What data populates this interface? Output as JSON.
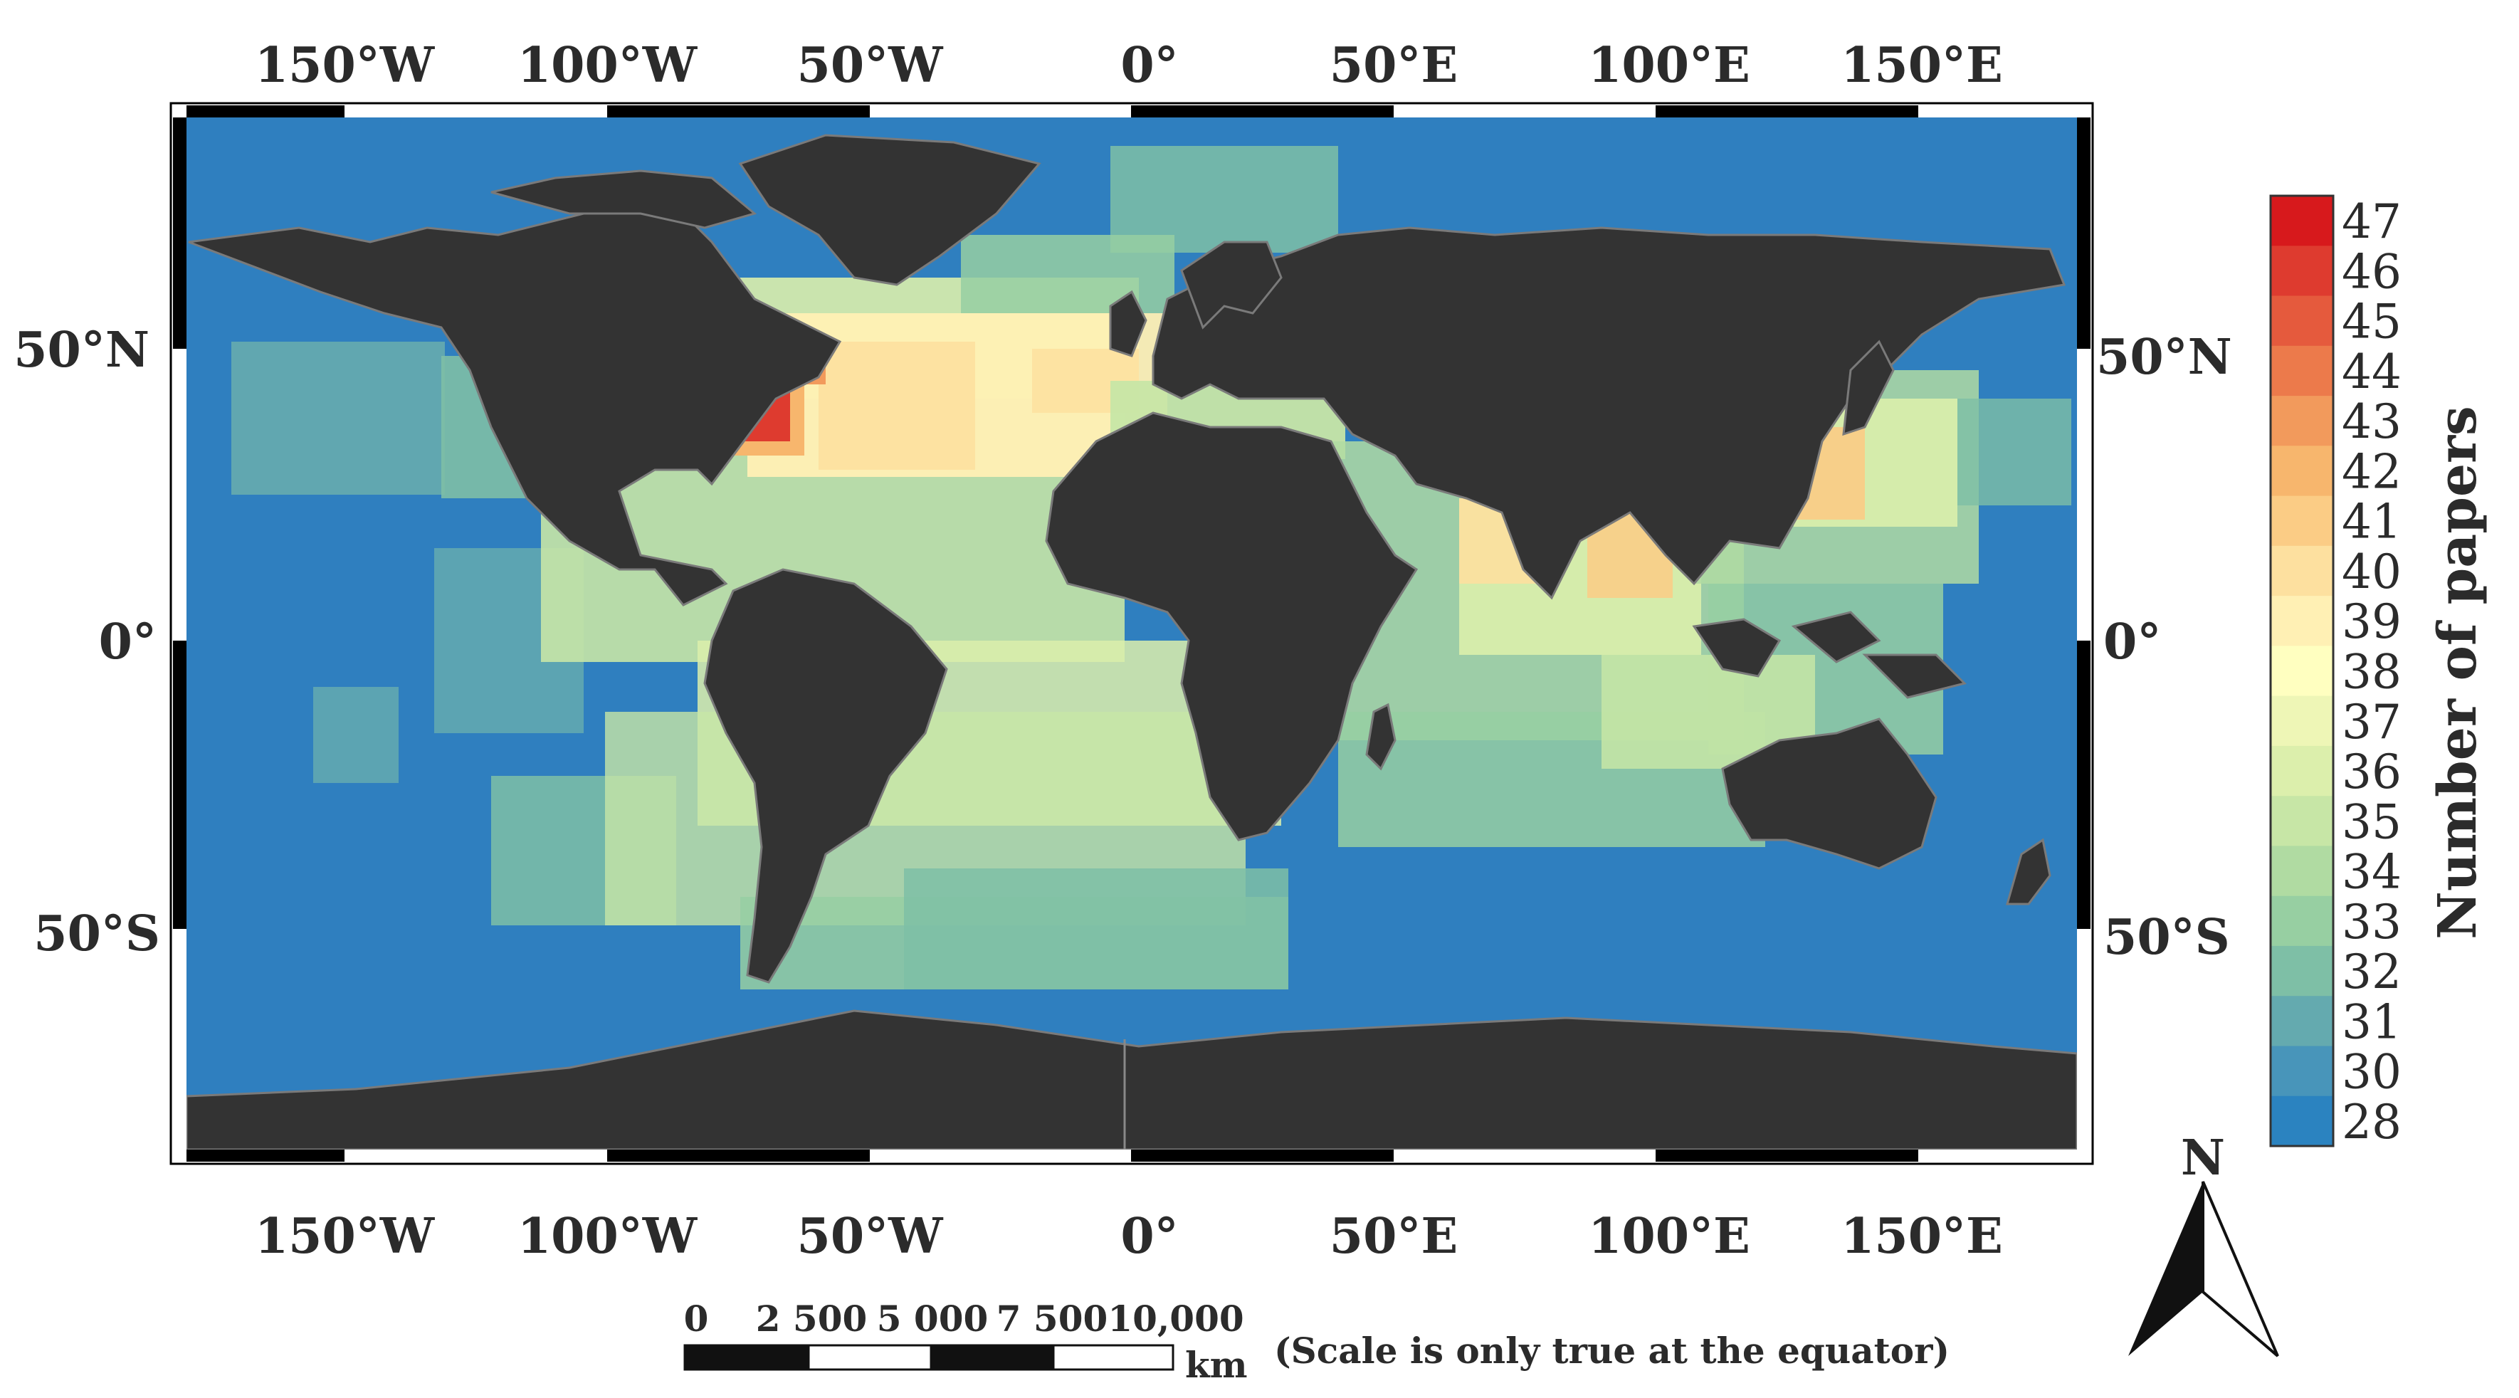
{
  "map": {
    "top_lon_labels": [
      "150°W",
      "100°W",
      "50°W",
      "0°",
      "50°E",
      "100°E",
      "150°E"
    ],
    "bottom_lon_labels": [
      "150°W",
      "100°W",
      "50°W",
      "0°",
      "50°E",
      "100°E",
      "150°E"
    ],
    "left_lat_labels": [
      "50°N",
      "0°",
      "50°S"
    ],
    "right_lat_labels": [
      "50°N",
      "0°",
      "50°S"
    ],
    "colors": {
      "ocean": "#2f7fbf",
      "land": "#333333",
      "coast": "#7a7a7a",
      "frame": "#000000"
    }
  },
  "legend": {
    "title": "Number of papers",
    "values": [
      "47",
      "46",
      "45",
      "44",
      "43",
      "42",
      "41",
      "40",
      "39",
      "38",
      "37",
      "36",
      "35",
      "34",
      "33",
      "32",
      "31",
      "30",
      "28"
    ],
    "colors": [
      "#d7191c",
      "#de3b2f",
      "#e55a3d",
      "#ec7a4b",
      "#f29a5c",
      "#f7b66d",
      "#fbcc85",
      "#fde09f",
      "#fff0b4",
      "#ffffc0",
      "#eef6b6",
      "#dcefac",
      "#c7e6a6",
      "#b0dba2",
      "#97cfa2",
      "#7ebfa6",
      "#64aaaf",
      "#4895ba",
      "#2b83c0"
    ]
  },
  "scale_bar": {
    "ticks": [
      "0",
      "2 500",
      "5 000",
      "7 500",
      "10,000"
    ],
    "unit": "km",
    "note": "(Scale is only true at the equator)"
  },
  "north_arrow": {
    "label": "N"
  }
}
